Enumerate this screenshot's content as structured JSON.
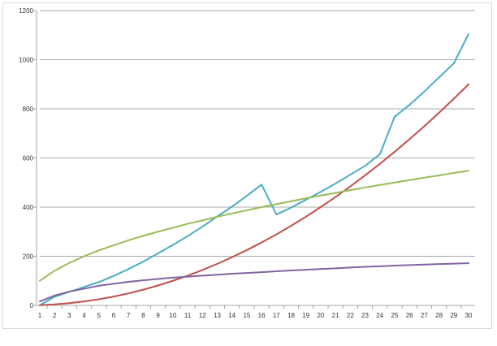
{
  "chart_data": {
    "type": "line",
    "title": "",
    "xlabel": "",
    "ylabel": "",
    "x": [
      1,
      2,
      3,
      4,
      5,
      6,
      7,
      8,
      9,
      10,
      11,
      12,
      13,
      14,
      15,
      16,
      17,
      18,
      19,
      20,
      21,
      22,
      23,
      24,
      25,
      26,
      27,
      28,
      29,
      30
    ],
    "ylim": [
      0,
      1200
    ],
    "yticks": [
      0,
      200,
      400,
      600,
      800,
      1000,
      1200
    ],
    "grid": "horizontal",
    "legend": "none",
    "series": [
      {
        "color": "#4bacc6",
        "values": [
          1,
          35,
          55,
          75,
          95,
          120,
          148,
          178,
          212,
          246,
          282,
          320,
          362,
          402,
          446,
          492,
          370,
          398,
          430,
          462,
          496,
          532,
          568,
          615,
          768,
          816,
          870,
          928,
          985,
          1105
        ]
      },
      {
        "color": "#c0504d",
        "values": [
          1,
          4,
          9,
          16,
          25,
          36,
          49,
          64,
          81,
          100,
          121,
          144,
          169,
          196,
          225,
          256,
          289,
          324,
          361,
          400,
          441,
          484,
          529,
          576,
          625,
          676,
          729,
          784,
          841,
          900
        ]
      },
      {
        "color": "#9bbb59",
        "values": [
          100,
          141,
          173,
          200,
          224,
          245,
          265,
          283,
          300,
          316,
          332,
          346,
          361,
          374,
          387,
          400,
          412,
          424,
          436,
          447,
          458,
          469,
          480,
          490,
          500,
          510,
          520,
          529,
          539,
          548
        ]
      },
      {
        "color": "#8064a2",
        "values": [
          16,
          40,
          56,
          68,
          80,
          88,
          96,
          102,
          108,
          113,
          117,
          121,
          125,
          129,
          132,
          135,
          139,
          142,
          145,
          148,
          151,
          154,
          157,
          159,
          162,
          164,
          166,
          168,
          170,
          172
        ]
      }
    ]
  }
}
